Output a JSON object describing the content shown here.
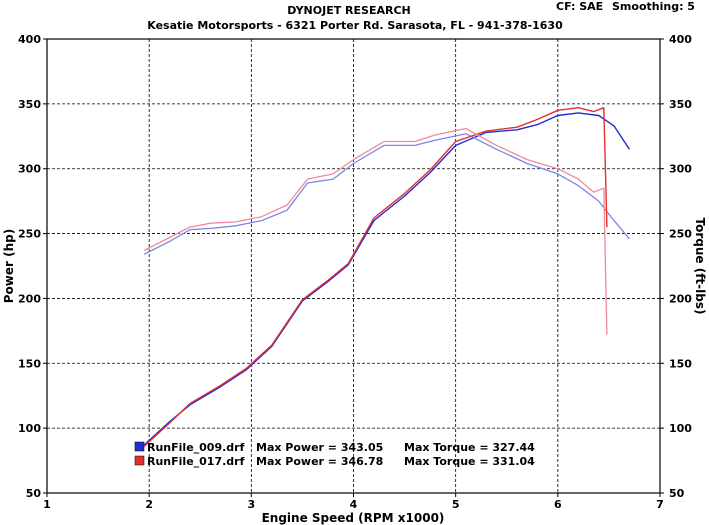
{
  "header": {
    "title": "DYNOJET RESEARCH",
    "subtitle": "Kesatie Motorsports - 6321 Porter Rd. Sarasota, FL - 941-378-1630",
    "cf": "CF: SAE",
    "smoothing": "Smoothing: 5"
  },
  "chart_data": {
    "type": "line",
    "xlabel": "Engine Speed (RPM x1000)",
    "ylabel": "Power (hp)",
    "y2label": "Torque (ft-lbs)",
    "xlim": [
      1,
      7
    ],
    "ylim": [
      50,
      400
    ],
    "y2lim": [
      50,
      400
    ],
    "x_ticks": [
      "1",
      "2",
      "3",
      "4",
      "5",
      "6",
      "7"
    ],
    "y_ticks": [
      "50",
      "100",
      "150",
      "200",
      "250",
      "300",
      "350",
      "400"
    ],
    "y2_ticks": [
      "50",
      "100",
      "150",
      "200",
      "250",
      "300",
      "350",
      "400"
    ],
    "grid": true,
    "legend_position": "bottom-left",
    "series": [
      {
        "name": "RunFile_009.drf",
        "color": "#1f2fd0",
        "max_power_label": "Max Power = 343.05",
        "max_torque_label": "Max Torque = 327.44",
        "power": {
          "x": [
            1.95,
            2.2,
            2.4,
            2.7,
            2.95,
            3.2,
            3.5,
            3.75,
            3.95,
            4.2,
            4.5,
            4.75,
            5.0,
            5.3,
            5.6,
            5.8,
            6.0,
            6.2,
            6.4,
            6.55,
            6.7
          ],
          "y": [
            87,
            105,
            118,
            132,
            145,
            163,
            198,
            213,
            226,
            260,
            279,
            297,
            318,
            328,
            330,
            334,
            341,
            343,
            341,
            333,
            315
          ]
        },
        "torque": {
          "x": [
            1.95,
            2.2,
            2.4,
            2.6,
            2.85,
            3.1,
            3.35,
            3.55,
            3.8,
            4.0,
            4.3,
            4.6,
            4.8,
            5.1,
            5.4,
            5.7,
            6.0,
            6.2,
            6.4,
            6.55,
            6.7
          ],
          "y": [
            234,
            244,
            253,
            254,
            256,
            260,
            268,
            289,
            292,
            304,
            318,
            318,
            322,
            327,
            315,
            304,
            296,
            287,
            275,
            260,
            246
          ]
        }
      },
      {
        "name": "RunFile_017.drf",
        "color": "#e03030",
        "max_power_label": "Max Power = 346.78",
        "max_torque_label": "Max Torque = 331.04",
        "power": {
          "x": [
            1.95,
            2.2,
            2.4,
            2.7,
            2.95,
            3.2,
            3.5,
            3.75,
            3.95,
            4.2,
            4.5,
            4.75,
            5.0,
            5.3,
            5.6,
            5.8,
            6.0,
            6.2,
            6.35,
            6.45,
            6.48
          ],
          "y": [
            86,
            104,
            119,
            133,
            146,
            164,
            199,
            214,
            227,
            262,
            281,
            299,
            321,
            329,
            332,
            338,
            345,
            347,
            344,
            347,
            255
          ]
        },
        "torque": {
          "x": [
            1.95,
            2.2,
            2.4,
            2.6,
            2.85,
            3.1,
            3.35,
            3.55,
            3.8,
            4.0,
            4.3,
            4.6,
            4.8,
            5.1,
            5.4,
            5.7,
            6.0,
            6.2,
            6.35,
            6.45,
            6.48
          ],
          "y": [
            237,
            247,
            255,
            258,
            259,
            263,
            272,
            292,
            296,
            307,
            321,
            321,
            326,
            331,
            318,
            307,
            300,
            292,
            282,
            285,
            172
          ]
        }
      }
    ]
  }
}
